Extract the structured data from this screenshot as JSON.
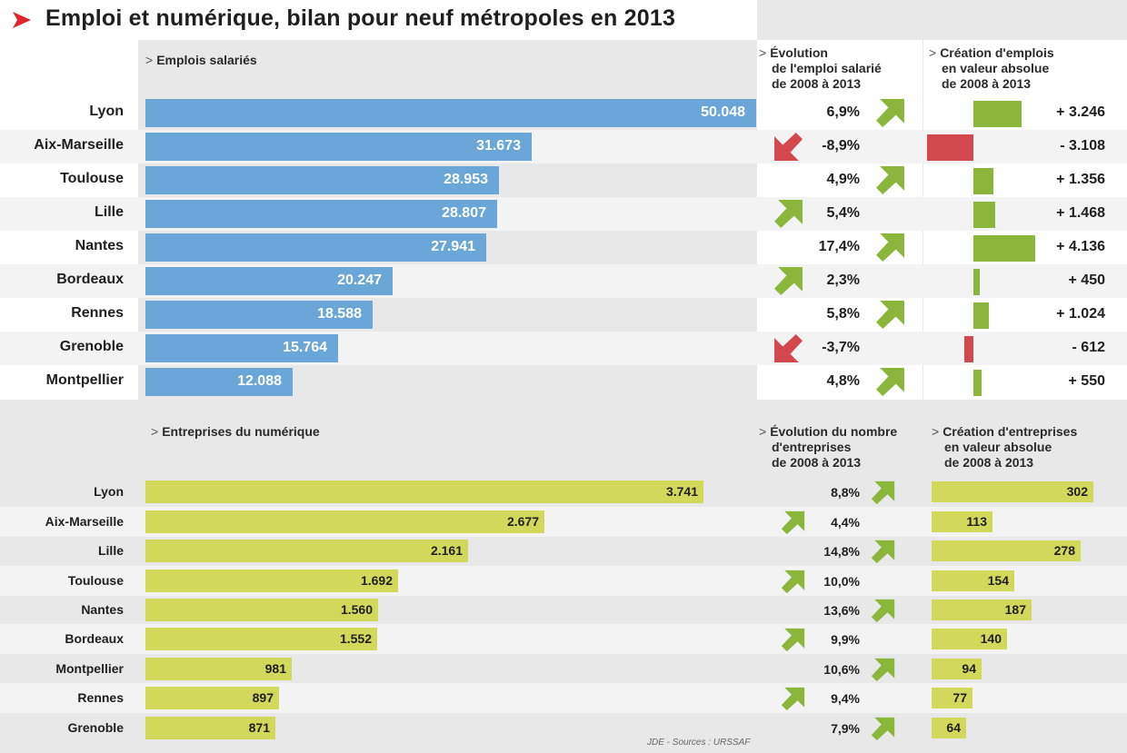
{
  "title": "Emploi et numérique, bilan pour neuf métropoles en  2013",
  "colors": {
    "employment_bar": "#6aa6d8",
    "digital_bar": "#d2d95a",
    "gain": "#8ab63c",
    "loss": "#d3484c",
    "title_chevron": "#e0262b"
  },
  "source": "JDE - Sources : URSSAF",
  "chart_data": [
    {
      "type": "bar",
      "orientation": "horizontal",
      "title": "Emplois salariés",
      "categories": [
        "Lyon",
        "Aix-Marseille",
        "Toulouse",
        "Lille",
        "Nantes",
        "Bordeaux",
        "Rennes",
        "Grenoble",
        "Montpellier"
      ],
      "values": [
        50048,
        31673,
        28953,
        28807,
        27941,
        20247,
        18588,
        15764,
        12088
      ],
      "labels": [
        "50.048",
        "31.673",
        "28.953",
        "28.807",
        "27.941",
        "20.247",
        "18.588",
        "15.764",
        "12.088"
      ],
      "xlim": [
        0,
        50048
      ]
    },
    {
      "type": "table",
      "title": "Évolution de l'emploi salarié de 2008 à 2013",
      "header_lines": [
        "Évolution",
        "de l'emploi salarié",
        "de 2008 à 2013"
      ],
      "categories": [
        "Lyon",
        "Aix-Marseille",
        "Toulouse",
        "Lille",
        "Nantes",
        "Bordeaux",
        "Rennes",
        "Grenoble",
        "Montpellier"
      ],
      "values": [
        6.9,
        -8.9,
        4.9,
        5.4,
        17.4,
        2.3,
        5.8,
        -3.7,
        4.8
      ],
      "labels": [
        "6,9%",
        "-8,9%",
        "4,9%",
        "5,4%",
        "17,4%",
        "2,3%",
        "5,8%",
        "-3,7%",
        "4,8%"
      ],
      "arrow_side": [
        "right",
        "left",
        "right",
        "left",
        "right",
        "left",
        "right",
        "left",
        "right"
      ]
    },
    {
      "type": "bar",
      "orientation": "horizontal-diverging",
      "title": "Création d'emplois en valeur absolue de 2008 à 2013",
      "header_lines": [
        "Création d'emplois",
        "en valeur absolue",
        "de 2008 à 2013"
      ],
      "categories": [
        "Lyon",
        "Aix-Marseille",
        "Toulouse",
        "Lille",
        "Nantes",
        "Bordeaux",
        "Rennes",
        "Grenoble",
        "Montpellier"
      ],
      "values": [
        3246,
        -3108,
        1356,
        1468,
        4136,
        450,
        1024,
        -612,
        550
      ],
      "labels": [
        "+ 3.246",
        "- 3.108",
        "+ 1.356",
        "+ 1.468",
        "+ 4.136",
        "+ 450",
        "+ 1.024",
        "- 612",
        "+ 550"
      ],
      "xlim": [
        -3108,
        4136
      ]
    },
    {
      "type": "bar",
      "orientation": "horizontal",
      "title": "Entreprises du numérique",
      "categories": [
        "Lyon",
        "Aix-Marseille",
        "Lille",
        "Toulouse",
        "Nantes",
        "Bordeaux",
        "Montpellier",
        "Rennes",
        "Grenoble"
      ],
      "values": [
        3741,
        2677,
        2161,
        1692,
        1560,
        1552,
        981,
        897,
        871
      ],
      "labels": [
        "3.741",
        "2.677",
        "2.161",
        "1.692",
        "1.560",
        "1.552",
        "981",
        "897",
        "871"
      ],
      "xlim": [
        0,
        3741
      ]
    },
    {
      "type": "table",
      "title": "Évolution du nombre d'entreprises de 2008 à 2013",
      "header_lines": [
        "Évolution du nombre",
        "d'entreprises",
        "de 2008 à 2013"
      ],
      "categories": [
        "Lyon",
        "Aix-Marseille",
        "Lille",
        "Toulouse",
        "Nantes",
        "Bordeaux",
        "Montpellier",
        "Rennes",
        "Grenoble"
      ],
      "values": [
        8.8,
        4.4,
        14.8,
        10.0,
        13.6,
        9.9,
        10.6,
        9.4,
        7.9
      ],
      "labels": [
        "8,8%",
        "4,4%",
        "14,8%",
        "10,0%",
        "13,6%",
        "9,9%",
        "10,6%",
        "9,4%",
        "7,9%"
      ],
      "arrow_side": [
        "right",
        "left",
        "right",
        "left",
        "right",
        "left",
        "right",
        "left",
        "right"
      ]
    },
    {
      "type": "bar",
      "orientation": "horizontal",
      "title": "Création d'entreprises en valeur absolue de 2008 à 2013",
      "header_lines": [
        "Création d'entreprises",
        "en valeur absolue",
        "de 2008 à 2013"
      ],
      "categories": [
        "Lyon",
        "Aix-Marseille",
        "Lille",
        "Toulouse",
        "Nantes",
        "Bordeaux",
        "Montpellier",
        "Rennes",
        "Grenoble"
      ],
      "values": [
        302,
        113,
        278,
        154,
        187,
        140,
        94,
        77,
        64
      ],
      "labels": [
        "302",
        "113",
        "278",
        "154",
        "187",
        "140",
        "94",
        "77",
        "64"
      ],
      "xlim": [
        0,
        302
      ]
    }
  ]
}
